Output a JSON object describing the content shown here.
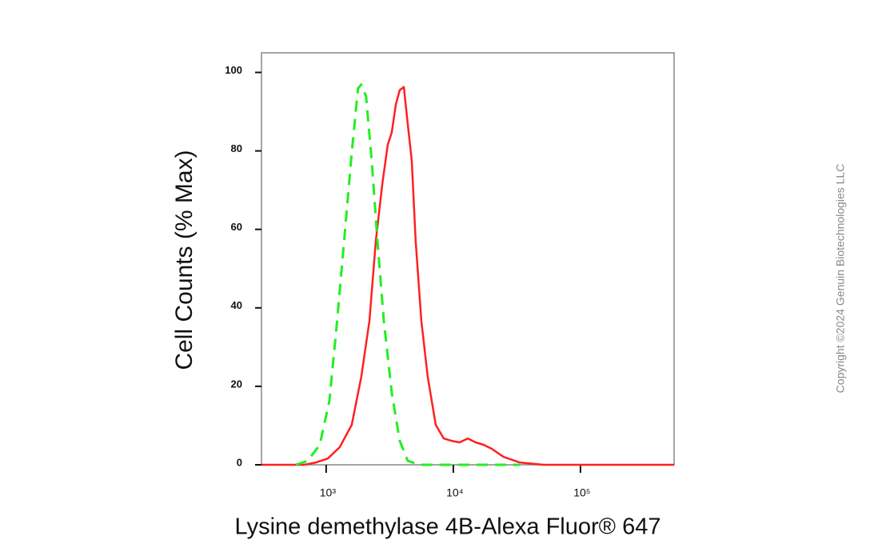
{
  "chart_data": {
    "type": "line",
    "x_label": "Lysine demethylase 4B-Alexa Fluor® 647",
    "y_label": "Cell Counts (% Max)",
    "watermark": "Copyright ©2024 Genuin Biotechnologies LLC",
    "xscale": "log",
    "xlim": [
      310,
      545000
    ],
    "ylim": [
      0,
      105
    ],
    "xticks": [
      {
        "value": 1000,
        "label": "10³"
      },
      {
        "value": 10000,
        "label": "10⁴"
      },
      {
        "value": 100000,
        "label": "10⁵"
      }
    ],
    "yticks": [
      0,
      20,
      40,
      60,
      80,
      100
    ],
    "series": [
      {
        "color": "#ff2020",
        "dashed": false,
        "x": [
          310,
          670,
          830,
          1030,
          1280,
          1590,
          1890,
          2190,
          2460,
          2760,
          3050,
          3280,
          3530,
          3790,
          4080,
          4390,
          4710,
          5060,
          5600,
          6290,
          7270,
          8410,
          9710,
          11200,
          13000,
          15000,
          17300,
          20000,
          24900,
          33300,
          51400,
          545000
        ],
        "values": [
          0,
          0,
          0.6,
          1.6,
          4.5,
          10.2,
          22.4,
          36.7,
          57.1,
          71.4,
          81.6,
          84.7,
          91.8,
          95.5,
          96.3,
          86.7,
          77.6,
          57.1,
          36.7,
          22.4,
          10.2,
          6.7,
          6.1,
          5.7,
          6.7,
          5.7,
          5.1,
          4.1,
          2.0,
          0.6,
          0,
          0
        ]
      },
      {
        "color": "#22ee22",
        "dashed": true,
        "x": [
          577,
          716,
          891,
          1060,
          1220,
          1420,
          1590,
          1780,
          1890,
          2060,
          2280,
          2530,
          2840,
          3280,
          3790,
          4390,
          5450,
          33300
        ],
        "values": [
          0,
          1.0,
          5.1,
          16.3,
          36.7,
          61.2,
          79.6,
          95.9,
          96.9,
          93.9,
          77.6,
          57.1,
          36.7,
          18.4,
          6.1,
          1.0,
          0,
          0
        ]
      }
    ]
  }
}
